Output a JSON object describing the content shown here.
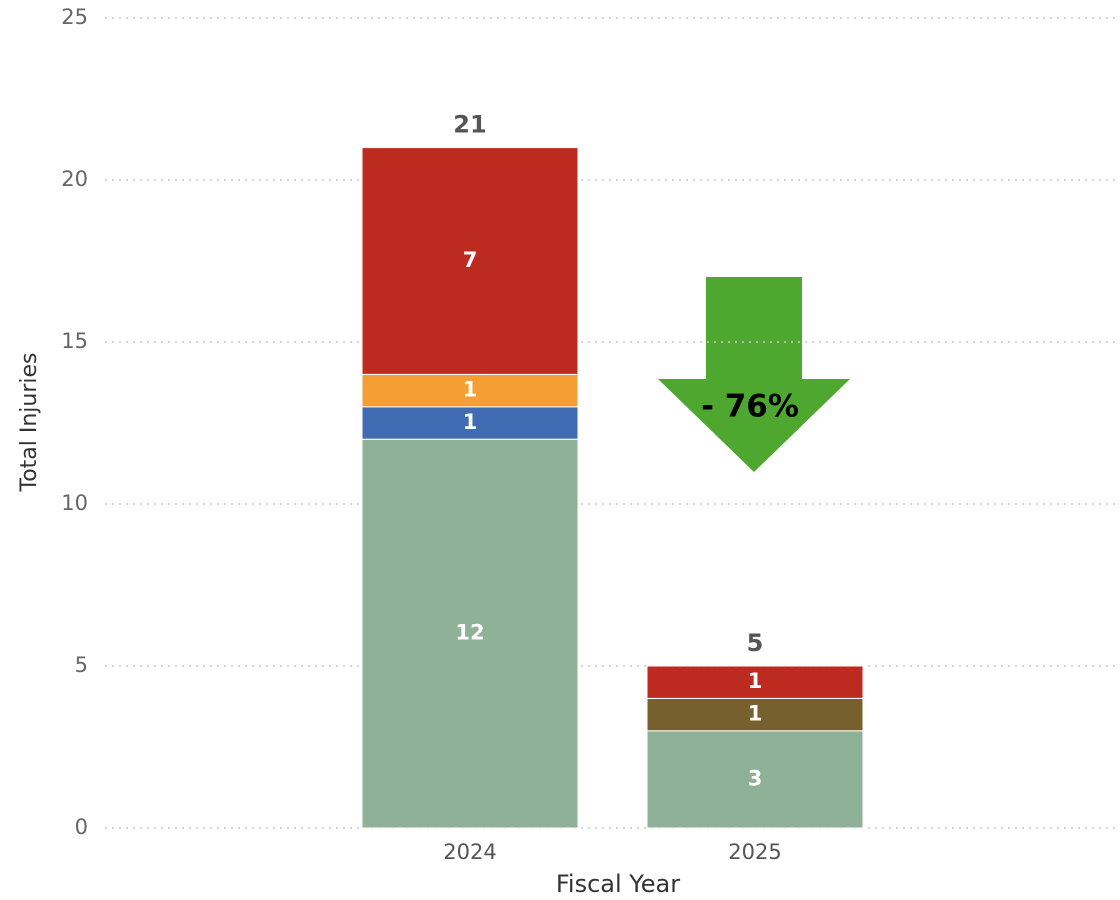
{
  "chart_data": {
    "type": "stacked_bar",
    "categories": [
      "2024",
      "2025"
    ],
    "series": [
      {
        "color": "#8fb197",
        "values": [
          12,
          3
        ]
      },
      {
        "color": "#416bb3",
        "values": [
          1,
          null
        ]
      },
      {
        "color": "#f59e33",
        "values": [
          1,
          null
        ]
      },
      {
        "color": "#75602e",
        "values": [
          null,
          1
        ]
      },
      {
        "color": "#bd2a20",
        "values": [
          7,
          1
        ]
      }
    ],
    "totals": [
      21,
      5
    ],
    "xlabel": "Fiscal Year",
    "ylabel": "Total Injuries",
    "ylim": [
      0,
      25
    ],
    "yticks": [
      0,
      5,
      10,
      15,
      20,
      25
    ],
    "grid": true,
    "annotation": {
      "text": "- 76%",
      "color": "#4ea72e"
    }
  }
}
